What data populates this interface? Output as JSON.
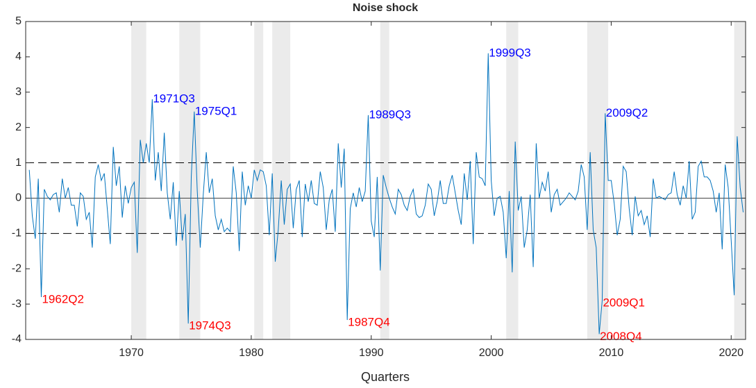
{
  "chart_data": {
    "type": "line",
    "title": "Noise shock",
    "xlabel": "Quarters",
    "x": [
      1961.5,
      1961.75,
      1962,
      1962.25,
      1962.5,
      1962.75,
      1963,
      1963.25,
      1963.5,
      1963.75,
      1964,
      1964.25,
      1964.5,
      1964.75,
      1965,
      1965.25,
      1965.5,
      1965.75,
      1966,
      1966.25,
      1966.5,
      1966.75,
      1967,
      1967.25,
      1967.5,
      1967.75,
      1968,
      1968.25,
      1968.5,
      1968.75,
      1969,
      1969.25,
      1969.5,
      1969.75,
      1970,
      1970.25,
      1970.5,
      1970.75,
      1971,
      1971.25,
      1971.5,
      1971.75,
      1972,
      1972.25,
      1972.5,
      1972.75,
      1973,
      1973.25,
      1973.5,
      1973.75,
      1974,
      1974.25,
      1974.5,
      1974.75,
      1975,
      1975.25,
      1975.5,
      1975.75,
      1976,
      1976.25,
      1976.5,
      1976.75,
      1977,
      1977.25,
      1977.5,
      1977.75,
      1978,
      1978.25,
      1978.5,
      1978.75,
      1979,
      1979.25,
      1979.5,
      1979.75,
      1980,
      1980.25,
      1980.5,
      1980.75,
      1981,
      1981.25,
      1981.5,
      1981.75,
      1982,
      1982.25,
      1982.5,
      1982.75,
      1983,
      1983.25,
      1983.5,
      1983.75,
      1984,
      1984.25,
      1984.5,
      1984.75,
      1985,
      1985.25,
      1985.5,
      1985.75,
      1986,
      1986.25,
      1986.5,
      1986.75,
      1987,
      1987.25,
      1987.5,
      1987.75,
      1988,
      1988.25,
      1988.5,
      1988.75,
      1989,
      1989.25,
      1989.5,
      1989.75,
      1990,
      1990.25,
      1990.5,
      1990.75,
      1991,
      1991.25,
      1991.5,
      1991.75,
      1992,
      1992.25,
      1992.5,
      1992.75,
      1993,
      1993.25,
      1993.5,
      1993.75,
      1994,
      1994.25,
      1994.5,
      1994.75,
      1995,
      1995.25,
      1995.5,
      1995.75,
      1996,
      1996.25,
      1996.5,
      1996.75,
      1997,
      1997.25,
      1997.5,
      1997.75,
      1998,
      1998.25,
      1998.5,
      1998.75,
      1999,
      1999.25,
      1999.5,
      1999.75,
      2000,
      2000.25,
      2000.5,
      2000.75,
      2001,
      2001.25,
      2001.5,
      2001.75,
      2002,
      2002.25,
      2002.5,
      2002.75,
      2003,
      2003.25,
      2003.5,
      2003.75,
      2004,
      2004.25,
      2004.5,
      2004.75,
      2005,
      2005.25,
      2005.5,
      2005.75,
      2006,
      2006.25,
      2006.5,
      2006.75,
      2007,
      2007.25,
      2007.5,
      2007.75,
      2008,
      2008.25,
      2008.5,
      2008.75,
      2009,
      2009.25,
      2009.5,
      2009.75,
      2010,
      2010.25,
      2010.5,
      2010.75,
      2011,
      2011.25,
      2011.5,
      2011.75,
      2012,
      2012.25,
      2012.5,
      2012.75,
      2013,
      2013.25,
      2013.5,
      2013.75,
      2014,
      2014.25,
      2014.5,
      2014.75,
      2015,
      2015.25,
      2015.5,
      2015.75,
      2016,
      2016.25,
      2016.5,
      2016.75,
      2017,
      2017.25,
      2017.5,
      2017.75,
      2018,
      2018.25,
      2018.5,
      2018.75,
      2019,
      2019.25,
      2019.5,
      2019.75,
      2020,
      2020.25,
      2020.5,
      2020.75,
      2021
    ],
    "series": [
      {
        "color": "#0072bd",
        "values": [
          0.8,
          -0.5,
          -1.15,
          0.55,
          -2.8,
          0.25,
          0.05,
          -0.05,
          0.1,
          0.15,
          -0.4,
          0.55,
          0,
          0.3,
          -0.2,
          -0.2,
          -0.8,
          0.15,
          0.05,
          -0.6,
          -0.4,
          -1.4,
          0.6,
          0.95,
          0.5,
          0.7,
          -0.3,
          -1.3,
          1.45,
          0.35,
          0.9,
          -0.55,
          0.35,
          -0.15,
          0.3,
          0.45,
          -1.55,
          1.65,
          1,
          1.55,
          1,
          2.8,
          0.5,
          1.3,
          0.2,
          1.85,
          0.15,
          -0.6,
          0.45,
          -1.35,
          0.2,
          -1.2,
          -0.45,
          -3.55,
          0.6,
          2.45,
          0.2,
          -1.4,
          0.1,
          1.3,
          0.15,
          0.55,
          -0.5,
          -0.9,
          -0.6,
          -0.95,
          -0.85,
          -0.95,
          0.9,
          0.15,
          -1.5,
          0.75,
          -0.2,
          0.35,
          0,
          0.8,
          0.5,
          0.8,
          0.75,
          0.35,
          -1.05,
          0.7,
          -1.8,
          -0.9,
          0.5,
          -0.75,
          0.25,
          0.4,
          -0.85,
          0.25,
          0.5,
          -1.1,
          0.4,
          -0.1,
          0.5,
          -0.15,
          -0.2,
          0.75,
          0.3,
          -0.9,
          -0.05,
          0.25,
          -0.95,
          1.55,
          0.3,
          1.4,
          -3.45,
          -0.3,
          0.15,
          -0.25,
          0.3,
          -0.1,
          0.2,
          2.35,
          -0.65,
          -1.1,
          0.6,
          -2.05,
          0.65,
          0.3,
          0,
          -0.25,
          -0.45,
          0.25,
          0.1,
          -0.2,
          -0.35,
          0.05,
          0.25,
          -0.45,
          -0.55,
          -0.5,
          -0.2,
          0.4,
          0.25,
          -0.5,
          -0.1,
          0.5,
          -0.15,
          -0.15,
          0.35,
          0.65,
          0.15,
          -0.35,
          -0.75,
          0.7,
          -0.05,
          1.05,
          -1.3,
          1.3,
          0.6,
          0.55,
          0.35,
          4.1,
          0.5,
          -0.5,
          0,
          0.05,
          -0.4,
          -1.7,
          0.2,
          -2.1,
          1.6,
          -0.35,
          0.05,
          -1.4,
          -0.9,
          0.1,
          -1.95,
          1.55,
          0,
          0.45,
          0.2,
          0.75,
          -0.4,
          0.1,
          0.25,
          -0.2,
          -0.1,
          0,
          0.15,
          0.05,
          -0.05,
          0.2,
          0.95,
          0.6,
          -0.9,
          1.3,
          -0.9,
          -1.4,
          -3.85,
          -2.9,
          2.4,
          0.5,
          0.5,
          -0.15,
          -1.05,
          -0.6,
          0.9,
          0.75,
          -0.3,
          -1.05,
          0.05,
          -0.5,
          -0.35,
          -0.75,
          -0.5,
          -1.1,
          0.55,
          0,
          0.05,
          0,
          -0.05,
          0.1,
          0.15,
          0.75,
          0.1,
          -0.2,
          0.35,
          0,
          1.05,
          -0.6,
          -0.4,
          0.9,
          1.05,
          0.6,
          0.6,
          0.5,
          0.2,
          -0.4,
          0.15,
          -1.45,
          0.95,
          0.3,
          -1.2,
          -2.75,
          1.75,
          0.3,
          -0.4
        ]
      }
    ],
    "xlim": [
      1961.2,
      2021.2
    ],
    "xticks": [
      1970,
      1980,
      1990,
      2000,
      2010,
      2020
    ],
    "ylim": [
      -4,
      5
    ],
    "yticks": [
      -4,
      -3,
      -2,
      -1,
      0,
      1,
      2,
      3,
      4,
      5
    ],
    "shaded_regions": {
      "color": "#ebebeb",
      "ranges": [
        [
          1970,
          1971.25
        ],
        [
          1974,
          1975.75
        ],
        [
          1980.25,
          1981
        ],
        [
          1981.75,
          1983.25
        ],
        [
          1990.75,
          1991.5
        ],
        [
          2001.25,
          2002.25
        ],
        [
          2008,
          2009.75
        ],
        [
          2020.25,
          2021.2
        ]
      ]
    },
    "hlines": [
      {
        "y": 1,
        "style": "dashed"
      },
      {
        "y": -1,
        "style": "dashed"
      },
      {
        "y": 0,
        "style": "solid"
      }
    ],
    "annotations": [
      {
        "text": "1962Q2",
        "x": 1962.5,
        "color": "#ff0000"
      },
      {
        "text": "1971Q3",
        "x": 1971.75,
        "color": "#0000ff"
      },
      {
        "text": "1974Q3",
        "x": 1974.75,
        "color": "#ff0000"
      },
      {
        "text": "1975Q1",
        "x": 1975.25,
        "color": "#0000ff"
      },
      {
        "text": "1987Q4",
        "x": 1988,
        "color": "#ff0000"
      },
      {
        "text": "1989Q3",
        "x": 1989.75,
        "color": "#0000ff"
      },
      {
        "text": "1999Q3",
        "x": 1999.75,
        "color": "#0000ff"
      },
      {
        "text": "2008Q4",
        "x": 2009,
        "color": "#ff0000"
      },
      {
        "text": "2009Q1",
        "x": 2009.25,
        "color": "#ff0000"
      },
      {
        "text": "2009Q2",
        "x": 2009.5,
        "color": "#0000ff"
      }
    ]
  }
}
